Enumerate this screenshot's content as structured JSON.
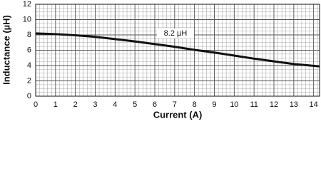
{
  "chart_data": {
    "type": "line",
    "x_label": "Current (A)",
    "y_label": "Inductance (µH)",
    "annotation": "8.2 µH",
    "x": [
      0,
      1,
      2,
      3,
      4,
      5,
      6,
      7,
      8,
      9,
      10,
      11,
      12,
      13,
      14.3
    ],
    "series": [
      {
        "name": "Inductance",
        "color": "#111111",
        "values": [
          8.2,
          8.1,
          7.95,
          7.75,
          7.45,
          7.15,
          6.8,
          6.45,
          6.05,
          5.7,
          5.3,
          4.9,
          4.55,
          4.2,
          3.9
        ]
      }
    ],
    "xlim": [
      0,
      14.3
    ],
    "ylim": [
      0,
      12
    ],
    "xticks": [
      0,
      1,
      2,
      3,
      4,
      5,
      6,
      7,
      8,
      9,
      10,
      11,
      12,
      13,
      14
    ],
    "yticks": [
      0,
      2,
      4,
      6,
      8,
      10,
      12
    ],
    "grid": true,
    "minor_grid": true
  }
}
